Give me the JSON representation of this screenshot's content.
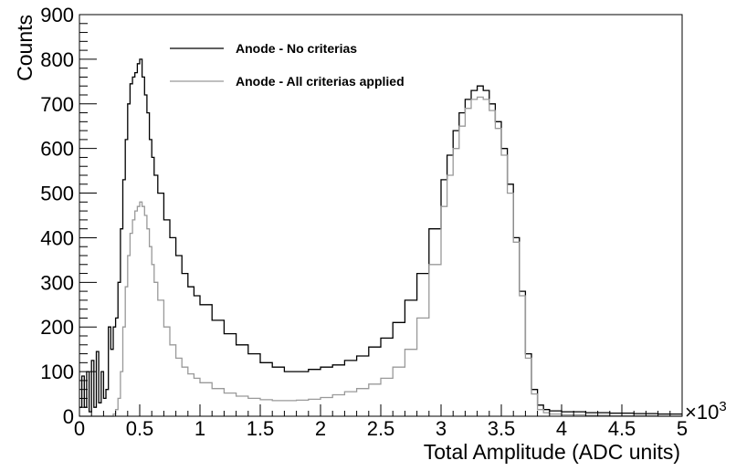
{
  "chart_data": {
    "type": "line",
    "xlabel": "Total Amplitude (ADC units)",
    "ylabel": "Counts",
    "x_multiplier_base": "×10",
    "x_multiplier_exp": "3",
    "xlim": [
      0,
      5
    ],
    "ylim": [
      0,
      900
    ],
    "x_ticks": [
      0,
      0.5,
      1,
      1.5,
      2,
      2.5,
      3,
      3.5,
      4,
      4.5,
      5
    ],
    "x_tick_labels": [
      "0",
      "0.5",
      "1",
      "1.5",
      "2",
      "2.5",
      "3",
      "3.5",
      "4",
      "4.5",
      "5"
    ],
    "y_ticks": [
      0,
      100,
      200,
      300,
      400,
      500,
      600,
      700,
      800,
      900
    ],
    "y_tick_labels": [
      "0",
      "100",
      "200",
      "300",
      "400",
      "500",
      "600",
      "700",
      "800",
      "900"
    ],
    "grid": false,
    "legend_position": "top-left",
    "series": [
      {
        "name": "Anode - No criterias",
        "color": "#000000",
        "x": [
          0.0,
          0.02,
          0.04,
          0.06,
          0.08,
          0.1,
          0.12,
          0.14,
          0.16,
          0.18,
          0.2,
          0.22,
          0.24,
          0.26,
          0.28,
          0.3,
          0.32,
          0.34,
          0.36,
          0.38,
          0.4,
          0.42,
          0.44,
          0.46,
          0.48,
          0.5,
          0.52,
          0.54,
          0.56,
          0.58,
          0.6,
          0.62,
          0.65,
          0.7,
          0.75,
          0.8,
          0.85,
          0.9,
          0.95,
          1.0,
          1.1,
          1.2,
          1.3,
          1.4,
          1.5,
          1.6,
          1.7,
          1.8,
          1.9,
          2.0,
          2.1,
          2.2,
          2.3,
          2.4,
          2.5,
          2.6,
          2.7,
          2.8,
          2.9,
          3.0,
          3.05,
          3.1,
          3.15,
          3.2,
          3.25,
          3.3,
          3.35,
          3.4,
          3.45,
          3.5,
          3.55,
          3.6,
          3.65,
          3.7,
          3.75,
          3.8,
          3.85,
          3.9,
          4.0,
          4.2,
          4.4,
          4.6,
          4.8,
          5.0
        ],
        "y": [
          20,
          90,
          20,
          100,
          10,
          125,
          20,
          145,
          30,
          100,
          40,
          60,
          200,
          150,
          200,
          220,
          300,
          420,
          530,
          620,
          700,
          745,
          760,
          770,
          790,
          800,
          760,
          720,
          680,
          620,
          580,
          540,
          500,
          440,
          400,
          360,
          320,
          290,
          270,
          250,
          215,
          185,
          160,
          140,
          120,
          110,
          100,
          100,
          105,
          110,
          115,
          125,
          135,
          155,
          175,
          210,
          260,
          320,
          420,
          530,
          585,
          640,
          680,
          710,
          730,
          740,
          730,
          700,
          660,
          600,
          520,
          400,
          280,
          140,
          60,
          25,
          15,
          12,
          10,
          8,
          7,
          6,
          5,
          5
        ]
      },
      {
        "name": "Anode - All criterias applied",
        "color": "#999999",
        "x": [
          0.0,
          0.02,
          0.04,
          0.06,
          0.08,
          0.1,
          0.12,
          0.14,
          0.16,
          0.18,
          0.2,
          0.22,
          0.24,
          0.26,
          0.28,
          0.3,
          0.32,
          0.34,
          0.36,
          0.38,
          0.4,
          0.42,
          0.44,
          0.46,
          0.48,
          0.5,
          0.52,
          0.54,
          0.56,
          0.58,
          0.6,
          0.62,
          0.65,
          0.7,
          0.75,
          0.8,
          0.85,
          0.9,
          0.95,
          1.0,
          1.1,
          1.2,
          1.3,
          1.4,
          1.5,
          1.6,
          1.7,
          1.8,
          1.9,
          2.0,
          2.1,
          2.2,
          2.3,
          2.4,
          2.5,
          2.6,
          2.7,
          2.8,
          2.9,
          3.0,
          3.05,
          3.1,
          3.15,
          3.2,
          3.25,
          3.3,
          3.35,
          3.4,
          3.45,
          3.5,
          3.55,
          3.6,
          3.65,
          3.7,
          3.75,
          3.8,
          3.85,
          3.9,
          4.0,
          4.2,
          4.4,
          4.6,
          4.8,
          5.0
        ],
        "y": [
          0,
          0,
          0,
          0,
          0,
          0,
          0,
          0,
          0,
          0,
          0,
          0,
          0,
          0,
          5,
          15,
          40,
          100,
          200,
          290,
          360,
          410,
          440,
          460,
          470,
          480,
          470,
          450,
          420,
          380,
          340,
          300,
          260,
          200,
          160,
          130,
          110,
          95,
          85,
          75,
          62,
          52,
          45,
          40,
          37,
          35,
          35,
          36,
          38,
          42,
          48,
          55,
          62,
          72,
          85,
          110,
          150,
          220,
          340,
          470,
          540,
          600,
          650,
          690,
          710,
          715,
          710,
          685,
          645,
          585,
          500,
          390,
          270,
          130,
          50,
          15,
          8,
          5,
          3,
          2,
          1,
          1,
          0,
          0
        ]
      }
    ]
  }
}
